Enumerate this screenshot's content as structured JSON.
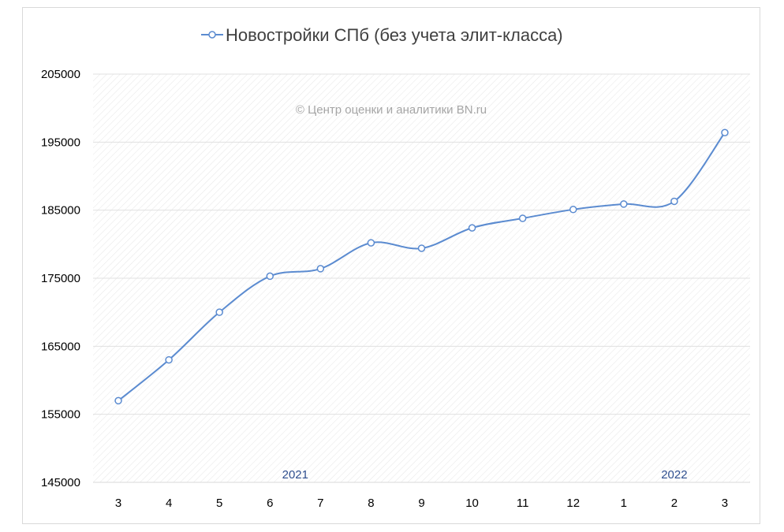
{
  "chart_data": {
    "type": "line",
    "title": "",
    "xlabel": "",
    "ylabel": "",
    "categories": [
      "3",
      "4",
      "5",
      "6",
      "7",
      "8",
      "9",
      "10",
      "11",
      "12",
      "1",
      "2",
      "3"
    ],
    "series": [
      {
        "name": "Новостройки СПб (без учета элит-класса)",
        "values": [
          157000,
          163000,
          170000,
          175300,
          176400,
          180200,
          179400,
          182400,
          183800,
          185100,
          185900,
          186300,
          196400
        ]
      }
    ],
    "ylim": [
      145000,
      205000
    ],
    "yticks": [
      "205000",
      "195000",
      "185000",
      "175000",
      "165000",
      "155000",
      "145000"
    ],
    "year_labels": [
      {
        "text": "2021",
        "category_index": 3.5
      },
      {
        "text": "2022",
        "category_index": 11
      }
    ],
    "watermark": "© Центр оценки и аналитики BN.ru",
    "legend_position": "top",
    "grid": true,
    "colors": {
      "line": "#5b8bd0",
      "grid": "#e0e0e0",
      "marker_fill": "#ffffff"
    }
  }
}
